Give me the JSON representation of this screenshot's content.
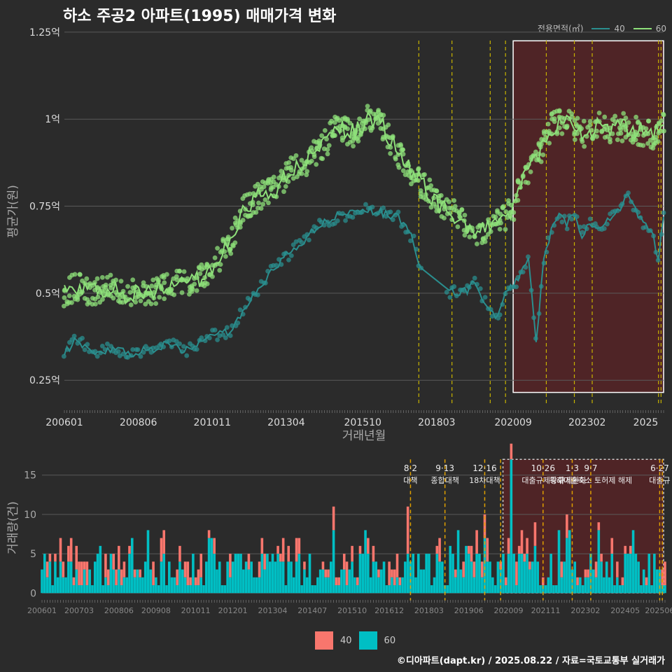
{
  "title": "하소 주공2 아파트(1995) 매매가격 변화",
  "caption": "©디아파트(dapt.kr) / 2025.08.22 / 자료=국토교통부 실거래가",
  "colors": {
    "s40": "#2a8e8e",
    "s60": "#8ee07a",
    "bar40": "#f8766d",
    "bar60": "#00bfc4",
    "policy": "#c8b400",
    "highlight": "#6e1f22"
  },
  "chart_data": [
    {
      "type": "line",
      "ylabel": "평균가(원)",
      "xlabel": "거래년월",
      "legend_title": "전용면적(㎡)",
      "ytick_labels": [
        "0.25억",
        "0.5억",
        "0.75억",
        "1억",
        "1.25억"
      ],
      "yticks": [
        0.25,
        0.5,
        0.75,
        1.0,
        1.25
      ],
      "ylim": [
        0.18,
        1.29
      ],
      "xtick_labels": [
        "200601",
        "200806",
        "201011",
        "201304",
        "201510",
        "201803",
        "202009",
        "202302",
        "2025"
      ],
      "xrange": [
        "2006-01",
        "2025-08"
      ],
      "grid": "horizontal",
      "policy_lines": [
        "2017-08",
        "2018-09",
        "2019-12",
        "2020-06",
        "2021-10",
        "2022-09",
        "2023-04",
        "2025-06",
        "2025-07"
      ],
      "highlight_range": [
        "2020-09",
        "2025-08"
      ],
      "series": [
        {
          "name": "40",
          "points": [
            [
              "2006-01",
              0.33
            ],
            [
              "2006-06",
              0.37
            ],
            [
              "2006-12",
              0.32
            ],
            [
              "2007-06",
              0.34
            ],
            [
              "2007-12",
              0.33
            ],
            [
              "2008-06",
              0.33
            ],
            [
              "2008-12",
              0.34
            ],
            [
              "2009-06",
              0.36
            ],
            [
              "2009-12",
              0.33
            ],
            [
              "2010-06",
              0.36
            ],
            [
              "2010-12",
              0.38
            ],
            [
              "2011-06",
              0.39
            ],
            [
              "2011-12",
              0.46
            ],
            [
              "2012-06",
              0.52
            ],
            [
              "2012-12",
              0.58
            ],
            [
              "2013-06",
              0.62
            ],
            [
              "2013-12",
              0.66
            ],
            [
              "2014-06",
              0.7
            ],
            [
              "2014-12",
              0.72
            ],
            [
              "2015-06",
              0.73
            ],
            [
              "2015-12",
              0.74
            ],
            [
              "2016-06",
              0.73
            ],
            [
              "2016-12",
              0.72
            ],
            [
              "2017-06",
              0.65
            ],
            [
              "2017-09",
              0.56
            ],
            [
              "2018-03",
              0.55
            ],
            [
              "2018-06",
              0.5
            ],
            [
              "2019-03",
              0.51
            ],
            [
              "2019-06",
              0.53
            ],
            [
              "2019-12",
              0.45
            ],
            [
              "2020-03",
              0.43
            ],
            [
              "2020-06",
              0.5
            ],
            [
              "2020-09",
              0.52
            ],
            [
              "2021-03",
              0.6
            ],
            [
              "2021-06",
              0.36
            ],
            [
              "2021-09",
              0.6
            ],
            [
              "2021-12",
              0.68
            ],
            [
              "2022-03",
              0.72
            ],
            [
              "2022-06",
              0.7
            ],
            [
              "2022-09",
              0.73
            ],
            [
              "2022-12",
              0.67
            ],
            [
              "2023-03",
              0.7
            ],
            [
              "2023-06",
              0.68
            ],
            [
              "2023-12",
              0.72
            ],
            [
              "2024-06",
              0.78
            ],
            [
              "2024-12",
              0.7
            ],
            [
              "2025-04",
              0.66
            ],
            [
              "2025-06",
              0.6
            ],
            [
              "2025-08",
              0.73
            ]
          ]
        },
        {
          "name": "60",
          "points": [
            [
              "2006-01",
              0.5
            ],
            [
              "2006-06",
              0.52
            ],
            [
              "2006-12",
              0.5
            ],
            [
              "2007-06",
              0.52
            ],
            [
              "2007-12",
              0.49
            ],
            [
              "2008-06",
              0.51
            ],
            [
              "2008-12",
              0.5
            ],
            [
              "2009-06",
              0.52
            ],
            [
              "2009-12",
              0.53
            ],
            [
              "2010-06",
              0.54
            ],
            [
              "2010-12",
              0.58
            ],
            [
              "2011-06",
              0.65
            ],
            [
              "2011-12",
              0.75
            ],
            [
              "2012-06",
              0.78
            ],
            [
              "2012-12",
              0.8
            ],
            [
              "2013-06",
              0.85
            ],
            [
              "2013-12",
              0.88
            ],
            [
              "2014-06",
              0.92
            ],
            [
              "2014-12",
              0.98
            ],
            [
              "2015-06",
              0.96
            ],
            [
              "2015-12",
              1.0
            ],
            [
              "2016-06",
              0.98
            ],
            [
              "2016-12",
              0.9
            ],
            [
              "2017-06",
              0.84
            ],
            [
              "2017-12",
              0.79
            ],
            [
              "2018-06",
              0.74
            ],
            [
              "2018-12",
              0.72
            ],
            [
              "2019-06",
              0.66
            ],
            [
              "2019-12",
              0.7
            ],
            [
              "2020-06",
              0.72
            ],
            [
              "2020-09",
              0.75
            ],
            [
              "2020-12",
              0.82
            ],
            [
              "2021-06",
              0.88
            ],
            [
              "2021-12",
              0.98
            ],
            [
              "2022-06",
              1.0
            ],
            [
              "2022-12",
              0.95
            ],
            [
              "2023-06",
              0.98
            ],
            [
              "2023-12",
              0.97
            ],
            [
              "2024-06",
              0.98
            ],
            [
              "2024-12",
              0.96
            ],
            [
              "2025-04",
              0.95
            ],
            [
              "2025-08",
              0.99
            ]
          ]
        }
      ]
    },
    {
      "type": "bar",
      "stacked": true,
      "ylabel": "거래량(건)",
      "yticks": [
        0,
        5,
        10,
        15
      ],
      "ylim": [
        -0.6,
        17.2
      ],
      "xtick_labels": [
        "200601",
        "200703",
        "200806",
        "200908",
        "201011",
        "201201",
        "201304",
        "201407",
        "201510",
        "201612",
        "201803",
        "201906",
        "202009",
        "202111",
        "202302",
        "202405",
        "202506"
      ],
      "series": [
        {
          "name": "40",
          "monthly_typical": 1,
          "max": 3
        },
        {
          "name": "60",
          "monthly_typical": 3,
          "max": 17
        }
      ],
      "policy_annotations": [
        {
          "month": "2017-08",
          "label": "8·2 대책"
        },
        {
          "month": "2018-09",
          "label": "9·13 종합대책"
        },
        {
          "month": "2019-12",
          "label": "12·16 18차대책"
        },
        {
          "month": "2020-06",
          "label": ""
        },
        {
          "month": "2021-10",
          "label": "10·26 대출규제강화"
        },
        {
          "month": "2022-09",
          "label": "1·3 규제완화"
        },
        {
          "month": "2023-04",
          "label": "9·7 특례대출축소 토허제 해제"
        },
        {
          "month": "2025-06",
          "label": "6·27 대출규"
        },
        {
          "month": "2025-07",
          "label": ""
        }
      ]
    }
  ],
  "legend": {
    "title": "전용면적(㎡)",
    "items": [
      "40",
      "60"
    ]
  }
}
